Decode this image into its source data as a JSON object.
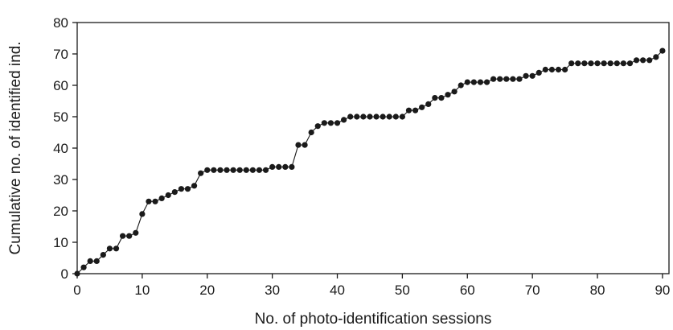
{
  "chart_data": {
    "type": "line",
    "xlabel": "No. of photo-identification sessions",
    "ylabel": "Cumulative no. of identified ind.",
    "xlim": [
      0,
      91
    ],
    "ylim": [
      0,
      80
    ],
    "xticks": [
      0,
      10,
      20,
      30,
      40,
      50,
      60,
      70,
      80,
      90
    ],
    "yticks": [
      0,
      10,
      20,
      30,
      40,
      50,
      60,
      70,
      80
    ],
    "grid": false,
    "legend": "none",
    "marker": "filled-circle",
    "color": "#1a1a1a",
    "series": [
      {
        "x": [
          0,
          1,
          2,
          3,
          4,
          5,
          6,
          7,
          8,
          9,
          10,
          11,
          12,
          13,
          14,
          15,
          16,
          17,
          18,
          19,
          20,
          21,
          22,
          23,
          24,
          25,
          26,
          27,
          28,
          29,
          30,
          31,
          32,
          33,
          34,
          35,
          36,
          37,
          38,
          39,
          40,
          41,
          42,
          43,
          44,
          45,
          46,
          47,
          48,
          49,
          50,
          51,
          52,
          53,
          54,
          55,
          56,
          57,
          58,
          59,
          60,
          61,
          62,
          63,
          64,
          65,
          66,
          67,
          68,
          69,
          70,
          71,
          72,
          73,
          74,
          75,
          76,
          77,
          78,
          79,
          80,
          81,
          82,
          83,
          84,
          85,
          86,
          87,
          88,
          89,
          90
        ],
        "y": [
          0,
          2,
          4,
          4,
          6,
          8,
          8,
          12,
          12,
          13,
          19,
          23,
          23,
          24,
          25,
          26,
          27,
          27,
          28,
          32,
          33,
          33,
          33,
          33,
          33,
          33,
          33,
          33,
          33,
          33,
          34,
          34,
          34,
          34,
          41,
          41,
          45,
          47,
          48,
          48,
          48,
          49,
          50,
          50,
          50,
          50,
          50,
          50,
          50,
          50,
          50,
          52,
          52,
          53,
          54,
          56,
          56,
          57,
          58,
          60,
          61,
          61,
          61,
          61,
          62,
          62,
          62,
          62,
          62,
          63,
          63,
          64,
          65,
          65,
          65,
          65,
          67,
          67,
          67,
          67,
          67,
          67,
          67,
          67,
          67,
          67,
          68,
          68,
          68,
          69,
          71
        ]
      }
    ]
  }
}
